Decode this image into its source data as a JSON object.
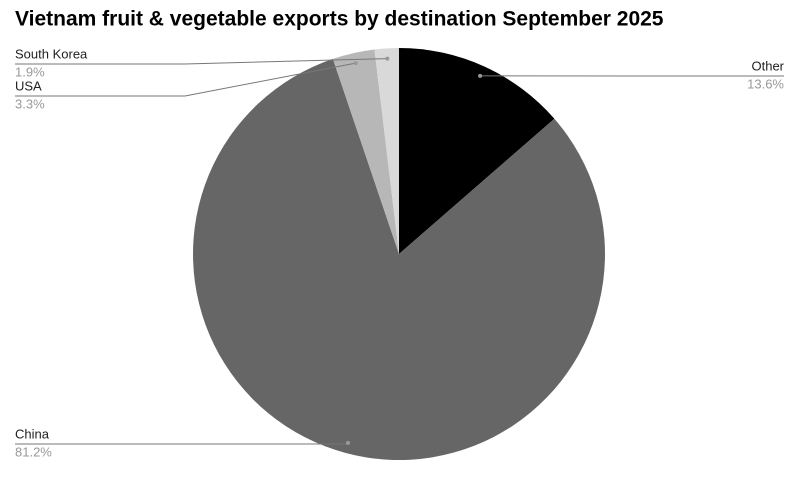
{
  "chart_data": {
    "type": "pie",
    "title": "Vietnam fruit & vegetable exports by destination September 2025",
    "categories": [
      "Other",
      "China",
      "USA",
      "South Korea"
    ],
    "values": [
      13.6,
      81.2,
      3.3,
      1.9
    ],
    "value_labels": [
      "13.6%",
      "81.2%",
      "3.3%",
      "1.9%"
    ],
    "colors": [
      "#000000",
      "#666666",
      "#b7b7b7",
      "#d9d9d9"
    ]
  }
}
